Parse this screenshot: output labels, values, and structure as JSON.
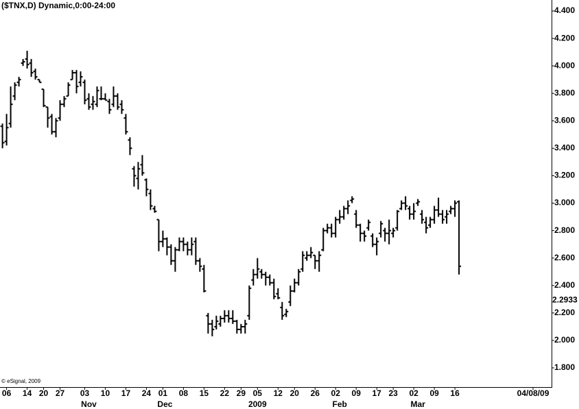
{
  "chart_data": {
    "type": "ohlc",
    "title": "($TNX,D) Dynamic,0:00-24:00",
    "footnote": "© eSignal, 2009",
    "color": "#000000",
    "ylim": [
      1.66,
      4.48
    ],
    "yticks": [
      {
        "value": 1.8,
        "label": "1.800"
      },
      {
        "value": 2.0,
        "label": "2.000"
      },
      {
        "value": 2.2,
        "label": "2.200"
      },
      {
        "value": 2.4,
        "label": "2.400"
      },
      {
        "value": 2.6,
        "label": "2.600"
      },
      {
        "value": 2.8,
        "label": "2.800"
      },
      {
        "value": 3.0,
        "label": "3.000"
      },
      {
        "value": 3.2,
        "label": "3.200"
      },
      {
        "value": 3.4,
        "label": "3.400"
      },
      {
        "value": 3.6,
        "label": "3.600"
      },
      {
        "value": 3.8,
        "label": "3.800"
      },
      {
        "value": 4.0,
        "label": "4.000"
      },
      {
        "value": 4.2,
        "label": "4.200"
      },
      {
        "value": 4.4,
        "label": "4.400"
      }
    ],
    "price_marker": {
      "value": 2.2933,
      "label": "2.2933"
    },
    "xlim": [
      -0.6,
      133.5
    ],
    "xticks": [
      {
        "value": 1,
        "label": "06"
      },
      {
        "value": 6,
        "label": "14"
      },
      {
        "value": 10,
        "label": "20"
      },
      {
        "value": 14,
        "label": "27"
      },
      {
        "value": 20,
        "label": "03"
      },
      {
        "value": 25,
        "label": "10"
      },
      {
        "value": 30,
        "label": "17"
      },
      {
        "value": 35,
        "label": "24"
      },
      {
        "value": 39,
        "label": "01"
      },
      {
        "value": 44,
        "label": "08"
      },
      {
        "value": 49,
        "label": "15"
      },
      {
        "value": 54,
        "label": "22"
      },
      {
        "value": 58,
        "label": "29"
      },
      {
        "value": 62,
        "label": "05"
      },
      {
        "value": 67,
        "label": "12"
      },
      {
        "value": 71,
        "label": "20"
      },
      {
        "value": 76,
        "label": "26"
      },
      {
        "value": 81,
        "label": "02"
      },
      {
        "value": 86,
        "label": "09"
      },
      {
        "value": 91,
        "label": "17"
      },
      {
        "value": 95,
        "label": "23"
      },
      {
        "value": 100,
        "label": "02"
      },
      {
        "value": 105,
        "label": "09"
      },
      {
        "value": 110,
        "label": "16"
      },
      {
        "value": 129,
        "label": "04/08/09"
      }
    ],
    "months": [
      {
        "value": 21,
        "label": "Nov"
      },
      {
        "value": 39.5,
        "label": "Dec"
      },
      {
        "value": 62,
        "label": "2009"
      },
      {
        "value": 82,
        "label": "Feb"
      },
      {
        "value": 101,
        "label": "Mar"
      }
    ],
    "bars": [
      [
        3.56,
        3.58,
        3.4,
        3.44
      ],
      [
        3.45,
        3.65,
        3.42,
        3.55
      ],
      [
        3.58,
        3.85,
        3.55,
        3.72
      ],
      [
        3.78,
        3.88,
        3.75,
        3.86
      ],
      [
        3.88,
        3.92,
        3.85,
        3.9
      ],
      [
        4.02,
        4.05,
        4.0,
        4.03
      ],
      [
        4.05,
        4.11,
        3.98,
        4.01
      ],
      [
        4.02,
        4.05,
        3.92,
        3.95
      ],
      [
        3.96,
        3.98,
        3.9,
        3.92
      ],
      [
        3.9,
        3.9,
        3.88,
        3.88
      ],
      [
        3.83,
        3.83,
        3.7,
        3.71
      ],
      [
        3.7,
        3.7,
        3.55,
        3.62
      ],
      [
        3.63,
        3.65,
        3.5,
        3.52
      ],
      [
        3.52,
        3.62,
        3.48,
        3.6
      ],
      [
        3.62,
        3.75,
        3.6,
        3.72
      ],
      [
        3.72,
        3.78,
        3.7,
        3.76
      ],
      [
        3.78,
        3.88,
        3.78,
        3.86
      ],
      [
        3.9,
        3.97,
        3.9,
        3.95
      ],
      [
        3.95,
        3.97,
        3.8,
        3.85
      ],
      [
        3.88,
        3.96,
        3.85,
        3.92
      ],
      [
        3.88,
        3.9,
        3.72,
        3.75
      ],
      [
        3.76,
        3.8,
        3.68,
        3.7
      ],
      [
        3.72,
        3.78,
        3.68,
        3.74
      ],
      [
        3.72,
        3.85,
        3.7,
        3.82
      ],
      [
        3.76,
        3.85,
        3.75,
        3.76
      ],
      [
        3.76,
        3.8,
        3.75,
        3.75
      ],
      [
        3.74,
        3.76,
        3.65,
        3.68
      ],
      [
        3.72,
        3.85,
        3.7,
        3.78
      ],
      [
        3.78,
        3.8,
        3.68,
        3.7
      ],
      [
        3.72,
        3.75,
        3.65,
        3.68
      ],
      [
        3.62,
        3.65,
        3.5,
        3.52
      ],
      [
        3.46,
        3.48,
        3.35,
        3.4
      ],
      [
        3.25,
        3.27,
        3.12,
        3.2
      ],
      [
        3.18,
        3.3,
        3.1,
        3.25
      ],
      [
        3.28,
        3.35,
        3.2,
        3.22
      ],
      [
        3.17,
        3.18,
        3.05,
        3.1
      ],
      [
        3.07,
        3.1,
        2.95,
        2.98
      ],
      [
        2.96,
        2.98,
        2.93,
        2.94
      ],
      [
        2.88,
        2.88,
        2.65,
        2.72
      ],
      [
        2.72,
        2.8,
        2.68,
        2.74
      ],
      [
        2.74,
        2.75,
        2.62,
        2.68
      ],
      [
        2.68,
        2.7,
        2.55,
        2.58
      ],
      [
        2.58,
        2.68,
        2.5,
        2.66
      ],
      [
        2.66,
        2.75,
        2.65,
        2.72
      ],
      [
        2.72,
        2.75,
        2.65,
        2.7
      ],
      [
        2.7,
        2.72,
        2.62,
        2.66
      ],
      [
        2.66,
        2.75,
        2.62,
        2.7
      ],
      [
        2.72,
        2.75,
        2.55,
        2.58
      ],
      [
        2.58,
        2.6,
        2.5,
        2.54
      ],
      [
        2.52,
        2.55,
        2.35,
        2.36
      ],
      [
        2.18,
        2.2,
        2.05,
        2.12
      ],
      [
        2.12,
        2.15,
        2.03,
        2.08
      ],
      [
        2.1,
        2.18,
        2.08,
        2.14
      ],
      [
        2.12,
        2.18,
        2.1,
        2.16
      ],
      [
        2.16,
        2.22,
        2.13,
        2.18
      ],
      [
        2.18,
        2.22,
        2.13,
        2.16
      ],
      [
        2.16,
        2.22,
        2.12,
        2.14
      ],
      [
        2.14,
        2.15,
        2.05,
        2.08
      ],
      [
        2.08,
        2.12,
        2.05,
        2.1
      ],
      [
        2.1,
        2.15,
        2.05,
        2.12
      ],
      [
        2.18,
        2.4,
        2.15,
        2.38
      ],
      [
        2.44,
        2.52,
        2.4,
        2.48
      ],
      [
        2.48,
        2.6,
        2.45,
        2.52
      ],
      [
        2.5,
        2.52,
        2.45,
        2.48
      ],
      [
        2.48,
        2.5,
        2.4,
        2.46
      ],
      [
        2.46,
        2.48,
        2.4,
        2.42
      ],
      [
        2.42,
        2.45,
        2.3,
        2.32
      ],
      [
        2.34,
        2.38,
        2.3,
        2.31
      ],
      [
        2.24,
        2.28,
        2.15,
        2.18
      ],
      [
        2.19,
        2.23,
        2.17,
        2.21
      ],
      [
        2.28,
        2.4,
        2.25,
        2.36
      ],
      [
        2.36,
        2.45,
        2.35,
        2.42
      ],
      [
        2.42,
        2.52,
        2.4,
        2.5
      ],
      [
        2.52,
        2.65,
        2.5,
        2.62
      ],
      [
        2.6,
        2.65,
        2.58,
        2.62
      ],
      [
        2.62,
        2.68,
        2.6,
        2.64
      ],
      [
        2.62,
        2.62,
        2.52,
        2.58
      ],
      [
        2.58,
        2.65,
        2.5,
        2.62
      ],
      [
        2.66,
        2.82,
        2.65,
        2.8
      ],
      [
        2.8,
        2.85,
        2.78,
        2.82
      ],
      [
        2.82,
        2.85,
        2.75,
        2.78
      ],
      [
        2.78,
        2.9,
        2.75,
        2.88
      ],
      [
        2.88,
        2.95,
        2.85,
        2.9
      ],
      [
        2.9,
        2.98,
        2.88,
        2.96
      ],
      [
        2.96,
        3.02,
        2.92,
        2.98
      ],
      [
        3.02,
        3.05,
        3.0,
        3.03
      ],
      [
        2.92,
        2.95,
        2.82,
        2.84
      ],
      [
        2.84,
        2.85,
        2.72,
        2.78
      ],
      [
        2.78,
        2.8,
        2.72,
        2.76
      ],
      [
        2.82,
        2.88,
        2.8,
        2.86
      ],
      [
        2.76,
        2.78,
        2.68,
        2.7
      ],
      [
        2.7,
        2.75,
        2.62,
        2.72
      ],
      [
        2.78,
        2.87,
        2.75,
        2.85
      ],
      [
        2.8,
        2.82,
        2.72,
        2.78
      ],
      [
        2.78,
        2.88,
        2.7,
        2.8
      ],
      [
        2.78,
        2.82,
        2.75,
        2.8
      ],
      [
        2.82,
        2.95,
        2.8,
        2.94
      ],
      [
        2.96,
        3.02,
        2.95,
        3.0
      ],
      [
        3.0,
        3.05,
        2.95,
        2.98
      ],
      [
        2.96,
        2.98,
        2.88,
        2.92
      ],
      [
        2.92,
        3.0,
        2.88,
        2.94
      ],
      [
        3.0,
        3.03,
        2.98,
        3.01
      ],
      [
        2.92,
        2.95,
        2.85,
        2.88
      ],
      [
        2.86,
        2.9,
        2.78,
        2.82
      ],
      [
        2.84,
        2.9,
        2.82,
        2.88
      ],
      [
        2.88,
        2.98,
        2.85,
        2.95
      ],
      [
        2.95,
        3.04,
        2.9,
        2.92
      ],
      [
        2.92,
        2.95,
        2.85,
        2.88
      ],
      [
        2.9,
        2.95,
        2.85,
        2.92
      ],
      [
        2.94,
        2.98,
        2.92,
        2.96
      ],
      [
        2.96,
        3.02,
        2.9,
        3.0
      ],
      [
        3.01,
        3.02,
        2.48,
        2.54
      ]
    ]
  }
}
